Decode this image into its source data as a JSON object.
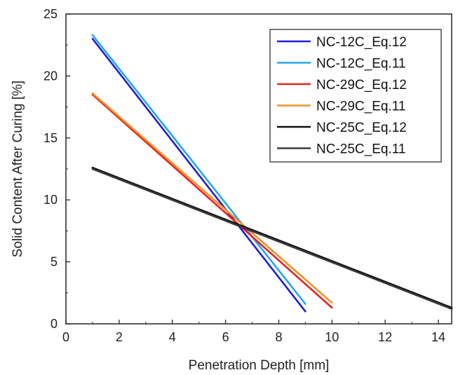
{
  "chart_data": {
    "type": "line",
    "title": "",
    "xlabel": "Penetration Depth [mm]",
    "ylabel": "Solid Content After Curing [%]",
    "xlim": [
      0,
      14.5
    ],
    "ylim": [
      0,
      25
    ],
    "xticks": [
      "0",
      "2",
      "4",
      "6",
      "8",
      "10",
      "12",
      "14"
    ],
    "yticks": [
      "0",
      "5",
      "10",
      "15",
      "20",
      "25"
    ],
    "grid": false,
    "legend_position": "top-right",
    "series": [
      {
        "name": "NC-12C_Eq.12",
        "color": "#1f1fd6",
        "x": [
          1,
          9
        ],
        "y": [
          23.0,
          1.0
        ]
      },
      {
        "name": "NC-12C_Eq.11",
        "color": "#25a8e8",
        "x": [
          1,
          9
        ],
        "y": [
          23.3,
          1.6
        ]
      },
      {
        "name": "NC-29C_Eq.12",
        "color": "#e8231f",
        "x": [
          1,
          10
        ],
        "y": [
          18.5,
          1.3
        ]
      },
      {
        "name": "NC-29C_Eq.11",
        "color": "#f0922a",
        "x": [
          1,
          10
        ],
        "y": [
          18.6,
          1.7
        ]
      },
      {
        "name": "NC-25C_Eq.12",
        "color": "#111111",
        "x": [
          1,
          14.5
        ],
        "y": [
          12.6,
          1.3
        ]
      },
      {
        "name": "NC-25C_Eq.11",
        "color": "#3a3a3a",
        "x": [
          1,
          14.5
        ],
        "y": [
          12.5,
          1.2
        ]
      }
    ]
  }
}
